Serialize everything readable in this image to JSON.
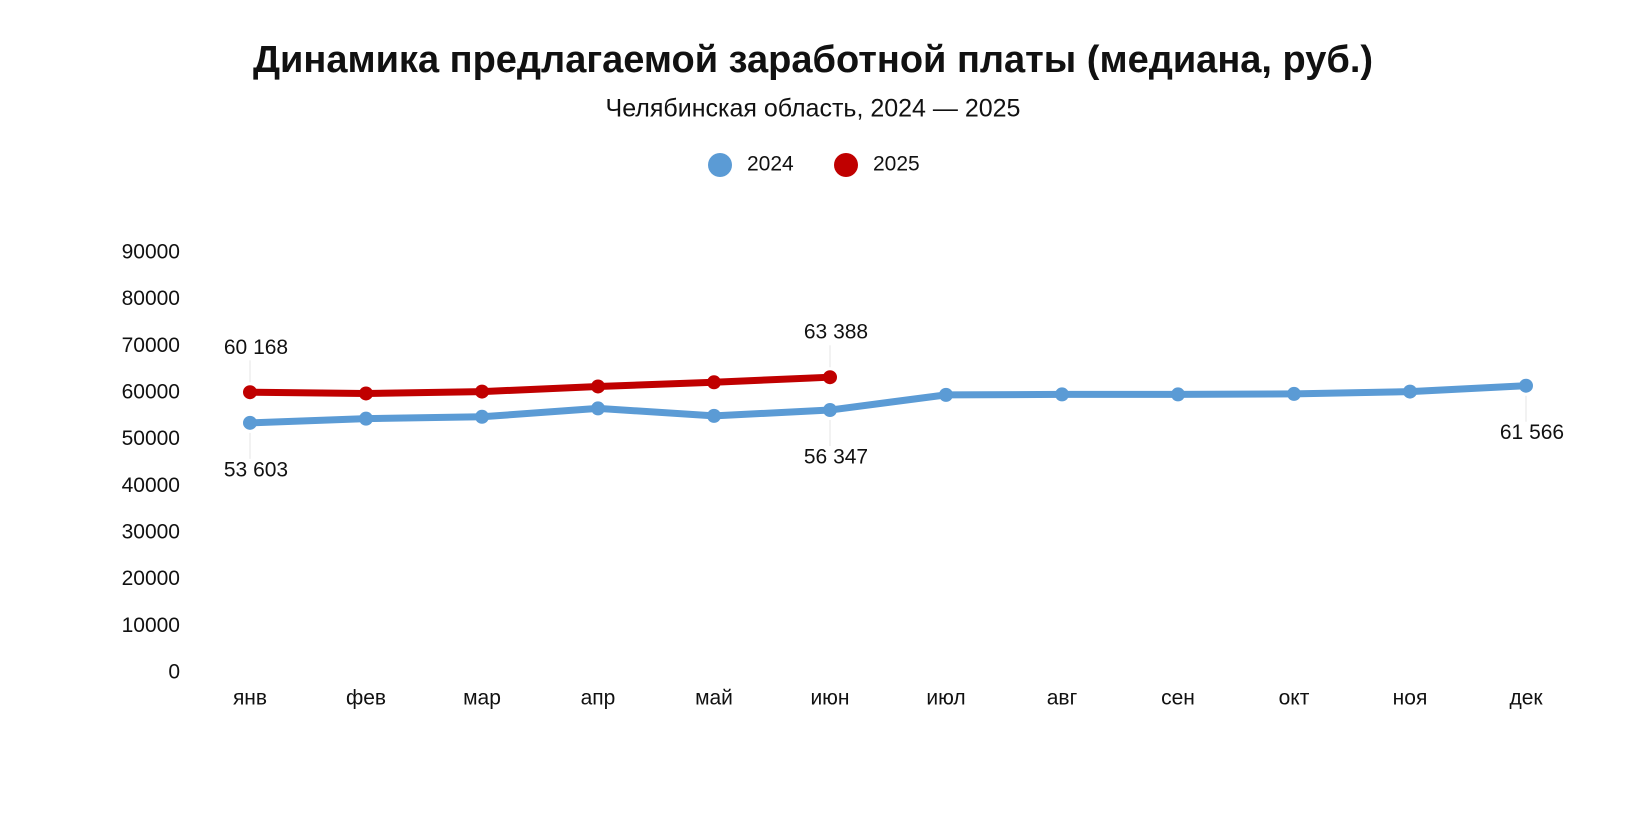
{
  "chart_data": {
    "type": "line",
    "title": "Динамика предлагаемой заработной платы (медиана, руб.)",
    "subtitle": "Челябинская область, 2024 — 2025",
    "categories": [
      "янв",
      "фев",
      "мар",
      "апр",
      "май",
      "июн",
      "июл",
      "авг",
      "сен",
      "окт",
      "ноя",
      "дек"
    ],
    "series": [
      {
        "name": "2024",
        "color": "#5b9bd5",
        "values": [
          53603,
          54500,
          54900,
          56700,
          55100,
          56347,
          59600,
          59700,
          59700,
          59800,
          60300,
          61566
        ],
        "value_labels": [
          "53 603",
          null,
          null,
          null,
          null,
          "56 347",
          null,
          null,
          null,
          null,
          null,
          "61 566"
        ]
      },
      {
        "name": "2025",
        "color": "#c00000",
        "values": [
          60168,
          59900,
          60300,
          61400,
          62300,
          63388,
          null,
          null,
          null,
          null,
          null,
          null
        ],
        "value_labels": [
          "60 168",
          null,
          null,
          null,
          null,
          "63 388",
          null,
          null,
          null,
          null,
          null,
          null
        ]
      }
    ],
    "ylim": [
      0,
      90000
    ],
    "yticks": [
      0,
      10000,
      20000,
      30000,
      40000,
      50000,
      60000,
      70000,
      80000,
      90000
    ],
    "grid": false,
    "legend": "top"
  }
}
